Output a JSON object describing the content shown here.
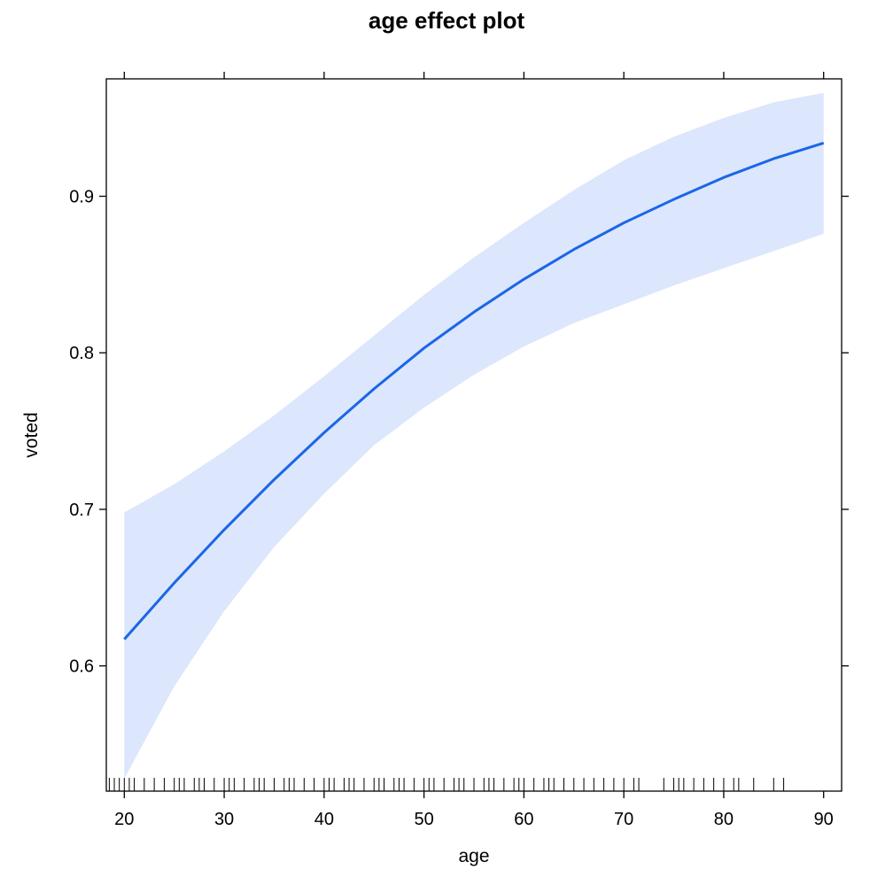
{
  "chart_data": {
    "type": "line",
    "title": "age effect plot",
    "xlabel": "age",
    "ylabel": "voted",
    "xlim": [
      18.2,
      91.8
    ],
    "ylim": [
      0.52,
      0.975
    ],
    "x_ticks": [
      20,
      30,
      40,
      50,
      60,
      70,
      80,
      90
    ],
    "y_ticks": [
      0.6,
      0.7,
      0.8,
      0.9
    ],
    "x_tick_labels": [
      "20",
      "30",
      "40",
      "50",
      "60",
      "70",
      "80",
      "90"
    ],
    "y_tick_labels": [
      "0.6",
      "0.7",
      "0.8",
      "0.9"
    ],
    "grid": false,
    "colors": {
      "line": "#1a66e8",
      "band": "#dce6fc",
      "rug": "#000000"
    },
    "series": [
      {
        "x": [
          20,
          25,
          30,
          35,
          40,
          45,
          50,
          55,
          60,
          65,
          70,
          75,
          80,
          85,
          90
        ],
        "fit": [
          0.617,
          0.653,
          0.687,
          0.719,
          0.749,
          0.777,
          0.803,
          0.826,
          0.847,
          0.866,
          0.883,
          0.898,
          0.912,
          0.924,
          0.934
        ],
        "lower": [
          0.528,
          0.587,
          0.635,
          0.676,
          0.71,
          0.741,
          0.765,
          0.786,
          0.804,
          0.819,
          0.831,
          0.843,
          0.854,
          0.865,
          0.876
        ],
        "upper": [
          0.698,
          0.716,
          0.737,
          0.76,
          0.785,
          0.811,
          0.837,
          0.861,
          0.883,
          0.904,
          0.923,
          0.938,
          0.95,
          0.96,
          0.966
        ]
      }
    ],
    "rug_x": [
      18.5,
      19,
      19.5,
      20,
      20.5,
      21,
      22,
      23,
      24,
      25,
      25.5,
      26,
      27,
      27.5,
      28,
      29,
      30,
      30.5,
      31,
      32,
      33,
      33.5,
      34,
      35,
      36,
      36.5,
      37,
      38,
      39,
      40,
      40.5,
      41,
      42,
      42.5,
      43,
      44,
      45,
      45.5,
      46,
      47,
      47.5,
      48,
      49,
      50,
      50.5,
      51,
      52,
      53,
      53.5,
      54,
      55,
      56,
      56.5,
      57,
      58,
      59,
      59.5,
      60,
      61,
      62,
      62.5,
      63,
      64,
      65,
      66,
      67,
      68,
      69,
      70,
      71,
      71.5,
      74,
      75,
      75.5,
      76,
      77,
      78,
      79,
      80,
      81,
      81.5,
      83,
      85,
      86
    ]
  }
}
